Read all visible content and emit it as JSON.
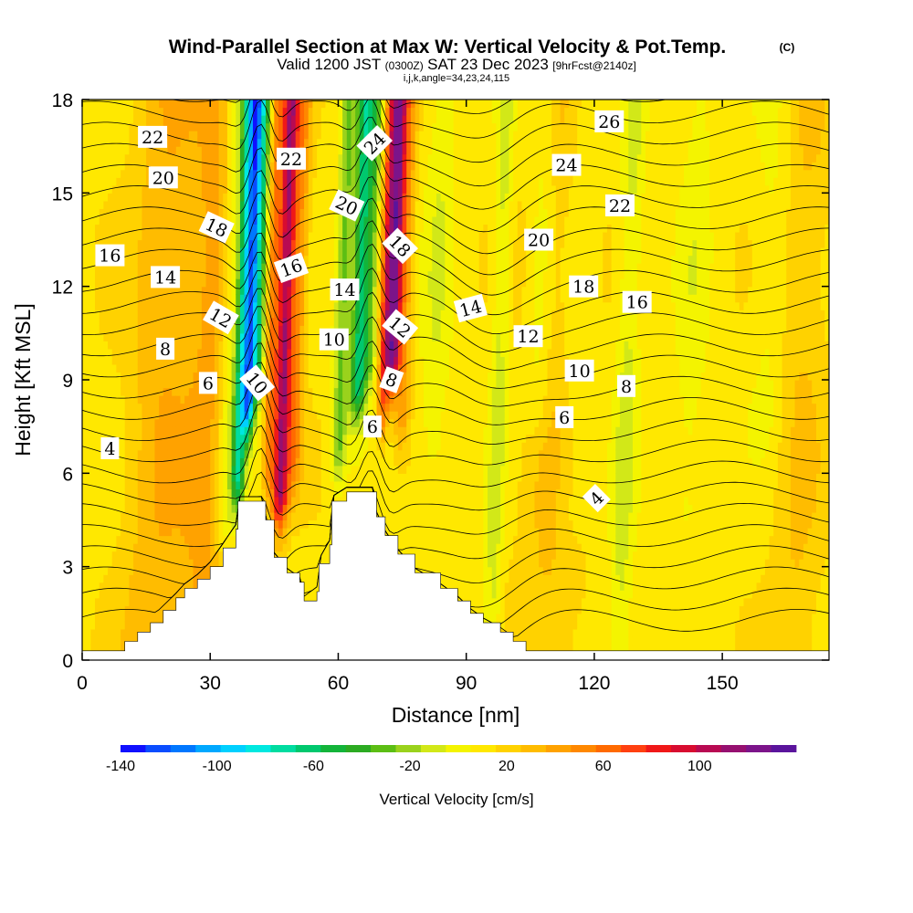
{
  "header": {
    "title": "Wind-Parallel Section at Max W: Vertical Velocity & Pot.Temp.",
    "copyright": "(C)",
    "valid_prefix": "Valid 1200 JST",
    "valid_utc": "(0300Z)",
    "valid_date": "SAT 23 Dec 2023",
    "forecast": "[9hrFcst@2140z]",
    "indices": "i,j,k,angle=34,23,24,115"
  },
  "chart_data": {
    "type": "heatmap",
    "title": "Wind-Parallel Section at Max W: Vertical Velocity & Pot.Temp.",
    "xlabel": "Distance [nm]",
    "ylabel": "Height [Kft MSL]",
    "xlim": [
      0,
      175
    ],
    "ylim": [
      0,
      18
    ],
    "x_ticks": [
      "0",
      "30",
      "60",
      "90",
      "120",
      "150"
    ],
    "y_ticks": [
      "0",
      "3",
      "6",
      "9",
      "12",
      "15",
      "18"
    ],
    "colorbar": {
      "label": "Vertical Velocity [cm/s]",
      "tick_labels": [
        "-140",
        "-100",
        "-60",
        "-20",
        "20",
        "60",
        "100"
      ],
      "tick_values": [
        -140,
        -100,
        -60,
        -20,
        20,
        60,
        100
      ],
      "range": [
        -140,
        140
      ],
      "colors": [
        "#1010ff",
        "#0a4dff",
        "#0077ff",
        "#00a8ff",
        "#00d0ff",
        "#00e8e0",
        "#00dca0",
        "#00c86e",
        "#13b43a",
        "#2cab22",
        "#5cbe14",
        "#9ad21c",
        "#d2e818",
        "#f4f400",
        "#ffe800",
        "#ffd200",
        "#ffbc00",
        "#ffa200",
        "#ff8800",
        "#ff6a00",
        "#ff4010",
        "#f01818",
        "#d80c30",
        "#b80a52",
        "#961070",
        "#7c148a",
        "#5a149c"
      ]
    },
    "terrain": [
      {
        "x": 0,
        "h": 0.3
      },
      {
        "x": 9,
        "h": 0.3
      },
      {
        "x": 10,
        "h": 0.6
      },
      {
        "x": 13,
        "h": 0.9
      },
      {
        "x": 16,
        "h": 1.2
      },
      {
        "x": 19,
        "h": 1.6
      },
      {
        "x": 22,
        "h": 2.0
      },
      {
        "x": 24,
        "h": 2.3
      },
      {
        "x": 27,
        "h": 2.6
      },
      {
        "x": 30,
        "h": 3.0
      },
      {
        "x": 33,
        "h": 3.6
      },
      {
        "x": 36,
        "h": 4.2
      },
      {
        "x": 36.5,
        "h": 5.1
      },
      {
        "x": 42,
        "h": 5.1
      },
      {
        "x": 43,
        "h": 4.5
      },
      {
        "x": 45,
        "h": 3.3
      },
      {
        "x": 48,
        "h": 2.8
      },
      {
        "x": 51,
        "h": 2.5
      },
      {
        "x": 52,
        "h": 1.9
      },
      {
        "x": 55,
        "h": 2.2
      },
      {
        "x": 55.5,
        "h": 3.1
      },
      {
        "x": 58,
        "h": 3.7
      },
      {
        "x": 58.5,
        "h": 5.1
      },
      {
        "x": 62,
        "h": 5.4
      },
      {
        "x": 68,
        "h": 5.4
      },
      {
        "x": 69,
        "h": 4.6
      },
      {
        "x": 71,
        "h": 4.0
      },
      {
        "x": 74,
        "h": 3.4
      },
      {
        "x": 78,
        "h": 2.8
      },
      {
        "x": 84,
        "h": 2.3
      },
      {
        "x": 88,
        "h": 1.9
      },
      {
        "x": 91,
        "h": 1.5
      },
      {
        "x": 94,
        "h": 1.2
      },
      {
        "x": 98,
        "h": 0.9
      },
      {
        "x": 101,
        "h": 0.6
      },
      {
        "x": 104,
        "h": 0.3
      },
      {
        "x": 175,
        "h": 0.3
      }
    ],
    "velocity_field": {
      "background": 12,
      "bands": [
        {
          "x": 33.5,
          "w": 2.2,
          "v": -25,
          "z0": 4.5
        },
        {
          "x": 36.5,
          "w": 1.6,
          "v": -80,
          "z0": 6.0
        },
        {
          "x": 38.5,
          "w": 1.4,
          "v": -120,
          "z0": 8.5
        },
        {
          "x": 40.5,
          "w": 1.4,
          "v": -60,
          "z0": 9.5
        },
        {
          "x": 43.5,
          "w": 1.5,
          "v": 40,
          "z0": 6.5
        },
        {
          "x": 46.5,
          "w": 1.8,
          "v": 95,
          "z0": 5.5
        },
        {
          "x": 49.5,
          "w": 2.0,
          "v": 35,
          "z0": 6.5
        },
        {
          "x": 60.0,
          "w": 1.8,
          "v": -40,
          "z0": 7.0
        },
        {
          "x": 64.0,
          "w": 1.8,
          "v": -75,
          "z0": 9.0
        },
        {
          "x": 66.5,
          "w": 1.5,
          "v": -40,
          "z0": 10.0
        },
        {
          "x": 70.0,
          "w": 1.4,
          "v": 55,
          "z0": 8.5
        },
        {
          "x": 72.0,
          "w": 1.7,
          "v": 105,
          "z0": 10.0
        },
        {
          "x": 74.5,
          "w": 1.8,
          "v": 30,
          "z0": 8.0
        },
        {
          "x": 82.0,
          "w": 3.5,
          "v": -15,
          "z0": 7.0
        },
        {
          "x": 97.0,
          "w": 2.0,
          "v": -22,
          "z0": 0.5
        },
        {
          "x": 106.0,
          "w": 3.0,
          "v": -18,
          "z0": 8.5
        },
        {
          "x": 115.0,
          "w": 4.0,
          "v": -12,
          "z0": 5.0
        },
        {
          "x": 127.0,
          "w": 2.8,
          "v": -20,
          "z0": 0.5
        },
        {
          "x": 142.0,
          "w": 4.0,
          "v": -12,
          "z0": 5.0
        },
        {
          "x": 160.0,
          "w": 4.0,
          "v": -10,
          "z0": 8.0
        },
        {
          "x": 18.0,
          "w": 8.0,
          "v": 22,
          "z0": 0.3
        },
        {
          "x": 30.0,
          "w": 6.0,
          "v": 25,
          "z0": 0.3
        },
        {
          "x": 110.0,
          "w": 8.0,
          "v": 15,
          "z0": 0.3
        },
        {
          "x": 168.0,
          "w": 6.0,
          "v": 14,
          "z0": 0.3
        }
      ]
    },
    "theta_contours": {
      "label_values": [
        "4",
        "6",
        "8",
        "10",
        "12",
        "14",
        "16",
        "18",
        "20",
        "22",
        "24",
        "26"
      ],
      "labels": [
        {
          "text": "22",
          "x": 16.5,
          "y": 16.8,
          "rot": 0
        },
        {
          "text": "20",
          "x": 19.0,
          "y": 15.5,
          "rot": 0
        },
        {
          "text": "18",
          "x": 31.5,
          "y": 13.9,
          "rot": 25
        },
        {
          "text": "16",
          "x": 6.5,
          "y": 13.0,
          "rot": 0
        },
        {
          "text": "14",
          "x": 19.5,
          "y": 12.3,
          "rot": 0
        },
        {
          "text": "12",
          "x": 32.5,
          "y": 11.0,
          "rot": 30
        },
        {
          "text": "8",
          "x": 19.5,
          "y": 10.0,
          "rot": 0
        },
        {
          "text": "6",
          "x": 29.5,
          "y": 8.9,
          "rot": 0
        },
        {
          "text": "10",
          "x": 41.0,
          "y": 8.9,
          "rot": 50
        },
        {
          "text": "4",
          "x": 6.5,
          "y": 6.8,
          "rot": 0
        },
        {
          "text": "22",
          "x": 49.0,
          "y": 16.1,
          "rot": 0
        },
        {
          "text": "16",
          "x": 49.0,
          "y": 12.6,
          "rot": -20
        },
        {
          "text": "20",
          "x": 62.0,
          "y": 14.6,
          "rot": 25
        },
        {
          "text": "14",
          "x": 61.5,
          "y": 11.9,
          "rot": 0
        },
        {
          "text": "10",
          "x": 59.0,
          "y": 10.3,
          "rot": 0
        },
        {
          "text": "24",
          "x": 68.5,
          "y": 16.6,
          "rot": -45
        },
        {
          "text": "18",
          "x": 74.5,
          "y": 13.3,
          "rot": 45
        },
        {
          "text": "12",
          "x": 74.5,
          "y": 10.7,
          "rot": 40
        },
        {
          "text": "8",
          "x": 72.5,
          "y": 9.0,
          "rot": 20
        },
        {
          "text": "6",
          "x": 68.0,
          "y": 7.5,
          "rot": 0
        },
        {
          "text": "14",
          "x": 91.0,
          "y": 11.3,
          "rot": -15
        },
        {
          "text": "12",
          "x": 104.5,
          "y": 10.4,
          "rot": 0
        },
        {
          "text": "26",
          "x": 123.5,
          "y": 17.3,
          "rot": 0
        },
        {
          "text": "24",
          "x": 113.5,
          "y": 15.9,
          "rot": 0
        },
        {
          "text": "22",
          "x": 126.0,
          "y": 14.6,
          "rot": 0
        },
        {
          "text": "20",
          "x": 107.0,
          "y": 13.5,
          "rot": 0
        },
        {
          "text": "18",
          "x": 117.5,
          "y": 12.0,
          "rot": 0
        },
        {
          "text": "16",
          "x": 130.0,
          "y": 11.5,
          "rot": 0
        },
        {
          "text": "10",
          "x": 116.5,
          "y": 9.3,
          "rot": 0
        },
        {
          "text": "8",
          "x": 127.5,
          "y": 8.8,
          "rot": 0
        },
        {
          "text": "6",
          "x": 113.0,
          "y": 7.8,
          "rot": 0
        },
        {
          "text": "4",
          "x": 120.5,
          "y": 5.2,
          "rot": -45
        }
      ]
    },
    "grid": false
  }
}
